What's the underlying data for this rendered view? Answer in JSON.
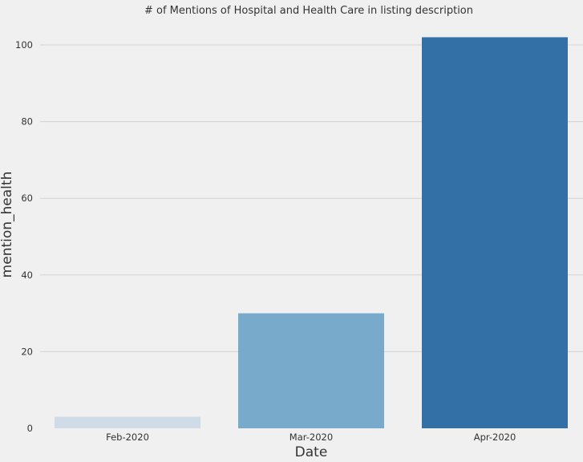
{
  "chart_data": {
    "type": "bar",
    "title": "# of Mentions of Hospital and Health Care in listing description",
    "xlabel": "Date",
    "ylabel": "mention_health",
    "categories": [
      "Feb-2020",
      "Mar-2020",
      "Apr-2020"
    ],
    "values": [
      3,
      30,
      102
    ],
    "colors": [
      "#cfdbe6",
      "#77aacb",
      "#3270a6"
    ],
    "yticks": [
      0,
      20,
      40,
      60,
      80,
      100
    ],
    "ylim": [
      0,
      106
    ],
    "grid": true,
    "legend": "none",
    "background": "#f0f0f0"
  }
}
